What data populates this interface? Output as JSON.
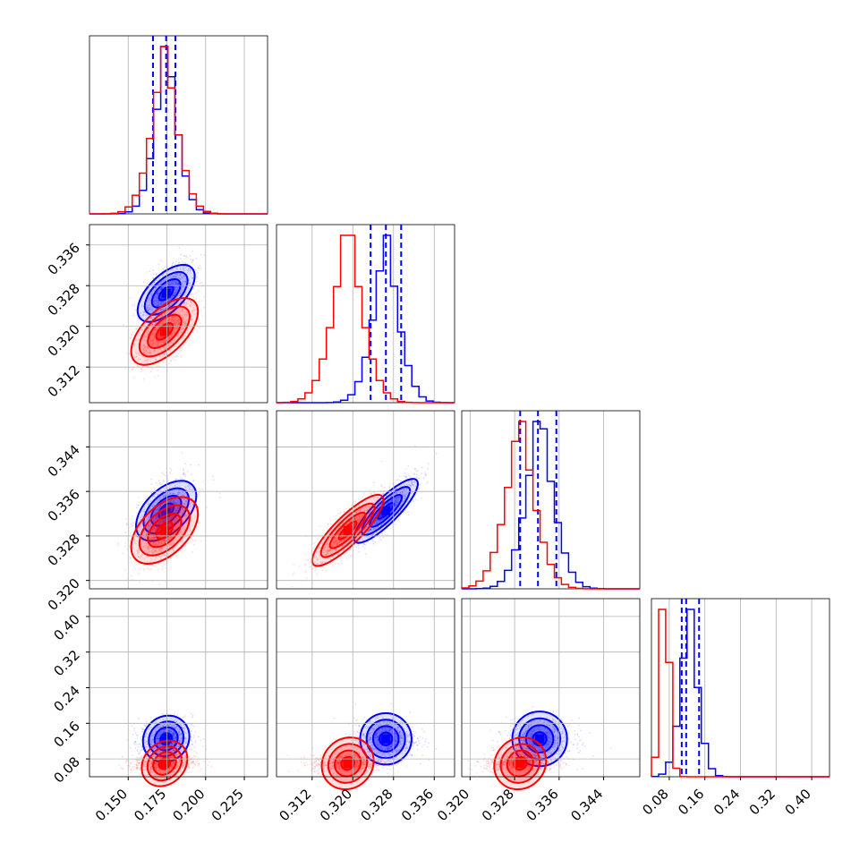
{
  "chart_data": {
    "type": "corner",
    "grid": true,
    "colors": {
      "series_a": "#0000ff",
      "series_b": "#ff0000"
    },
    "parameters": [
      {
        "range": [
          0.125,
          0.24
        ],
        "ticks": [
          0.15,
          0.175,
          0.2,
          0.225
        ],
        "tick_labels": [
          "0.150",
          "0.175",
          "0.200",
          "0.225"
        ]
      },
      {
        "range": [
          0.305,
          0.34
        ],
        "ticks": [
          0.312,
          0.32,
          0.328,
          0.336
        ],
        "tick_labels": [
          "0.312",
          "0.320",
          "0.328",
          "0.336"
        ]
      },
      {
        "range": [
          0.3185,
          0.3505
        ],
        "ticks": [
          0.32,
          0.328,
          0.336,
          0.344
        ],
        "tick_labels": [
          "0.320",
          "0.328",
          "0.336",
          "0.344"
        ]
      },
      {
        "range": [
          0.04,
          0.44
        ],
        "ticks": [
          0.08,
          0.16,
          0.24,
          0.32,
          0.4
        ],
        "tick_labels": [
          "0.08",
          "0.16",
          "0.24",
          "0.32",
          "0.40"
        ]
      }
    ],
    "series": [
      {
        "color": "#0000ff",
        "means": [
          0.1745,
          0.3265,
          0.3325,
          0.125
        ],
        "stds": [
          0.0085,
          0.003,
          0.003,
          0.022
        ],
        "quantiles": [
          [
            0.166,
            0.1745,
            0.1805
          ],
          [
            0.3235,
            0.3265,
            0.3295
          ],
          [
            0.329,
            0.3322,
            0.3355
          ],
          [
            0.108,
            0.118,
            0.147
          ]
        ],
        "correlations": [
          [
            0,
            1,
            0.6
          ],
          [
            0,
            2,
            0.5
          ],
          [
            1,
            2,
            0.85
          ],
          [
            0,
            3,
            0.1
          ],
          [
            1,
            3,
            0.0
          ],
          [
            2,
            3,
            0.0
          ]
        ]
      },
      {
        "color": "#ff0000",
        "means": [
          0.1735,
          0.319,
          0.329,
          0.07
        ],
        "stds": [
          0.01,
          0.0035,
          0.0032,
          0.01
        ],
        "quantiles": [],
        "correlations": [
          [
            0,
            1,
            0.6
          ],
          [
            0,
            2,
            0.5
          ],
          [
            1,
            2,
            0.85
          ],
          [
            0,
            3,
            0.2
          ],
          [
            1,
            3,
            0.1
          ],
          [
            2,
            3,
            0.1
          ]
        ]
      }
    ]
  }
}
